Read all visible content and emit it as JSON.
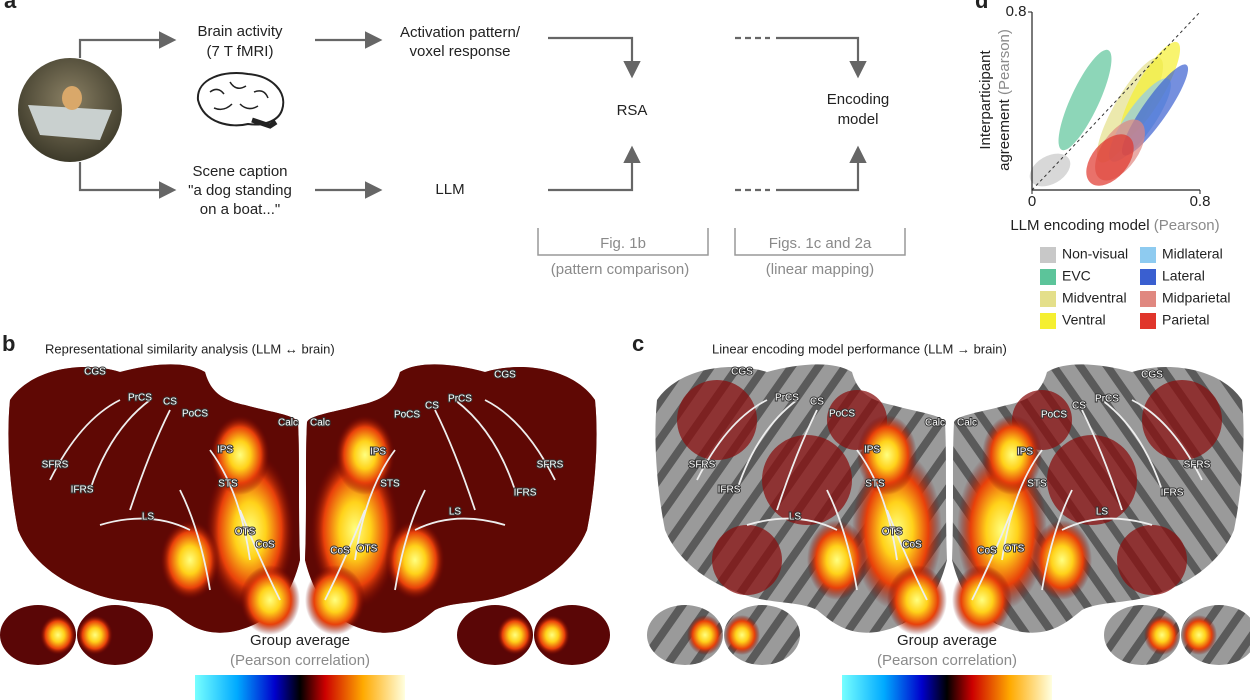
{
  "panel_a": {
    "label": "a",
    "brain_activity": "Brain activity",
    "brain_activity_sub": "(7 T fMRI)",
    "activation_1": "Activation pattern/",
    "activation_2": "voxel response",
    "caption_1": "Scene caption",
    "caption_2": "\"a dog standing",
    "caption_3": "on a boat...\"",
    "llm": "LLM",
    "rsa": "RSA",
    "encoding_1": "Encoding",
    "encoding_2": "model",
    "bracket_1": "Fig. 1b",
    "bracket_1_sub": "(pattern comparison)",
    "bracket_2": "Figs. 1c and 2a",
    "bracket_2_sub": "(linear mapping)"
  },
  "panel_b": {
    "label": "b",
    "title": "Representational similarity analysis  (LLM ↔ brain)",
    "sulci_left": [
      "CGS",
      "PrCS",
      "CS",
      "PoCS",
      "Calc",
      "SFRS",
      "IFRS",
      "IPS",
      "STS",
      "LS",
      "OTS",
      "CoS"
    ],
    "sulci_right": [
      "CGS",
      "PoCS",
      "CS",
      "PrCS",
      "Calc",
      "IPS",
      "STS",
      "SFRS",
      "IFRS",
      "LS",
      "CoS",
      "OTS"
    ],
    "colorbar_title": "Group average",
    "colorbar_subtitle": "(Pearson correlation)"
  },
  "panel_c": {
    "label": "c",
    "title": "Linear encoding model performance (LLM → brain)",
    "sulci_left": [
      "CGS",
      "PrCS",
      "CS",
      "PoCS",
      "Calc",
      "SFRS",
      "IFRS",
      "IPS",
      "STS",
      "LS",
      "OTS",
      "CoS"
    ],
    "sulci_right": [
      "CGS",
      "PoCS",
      "CS",
      "PrCS",
      "Calc",
      "IPS",
      "STS",
      "SFRS",
      "IFRS",
      "LS",
      "CoS",
      "OTS"
    ],
    "colorbar_title": "Group average",
    "colorbar_subtitle": "(Pearson correlation)"
  },
  "panel_d": {
    "label": "d",
    "y_label_1": "Interparticipant",
    "y_label_2": "agreement",
    "y_label_unit": "(Pearson)",
    "x_label": "LLM encoding model",
    "x_label_unit": "(Pearson)",
    "xlim": [
      0,
      0.8
    ],
    "ylim": [
      0,
      0.8
    ],
    "xticks": [
      0,
      0.8
    ],
    "yticks": [
      0.8
    ],
    "legend": [
      {
        "name": "Non-visual",
        "color": "#c8c8c8"
      },
      {
        "name": "EVC",
        "color": "#5cc49a"
      },
      {
        "name": "Midventral",
        "color": "#e4df8a"
      },
      {
        "name": "Ventral",
        "color": "#f5ef30"
      },
      {
        "name": "Midlateral",
        "color": "#8ecbf0"
      },
      {
        "name": "Lateral",
        "color": "#3a5fd0"
      },
      {
        "name": "Midparietal",
        "color": "#e08880"
      },
      {
        "name": "Parietal",
        "color": "#e0352b"
      }
    ]
  }
}
